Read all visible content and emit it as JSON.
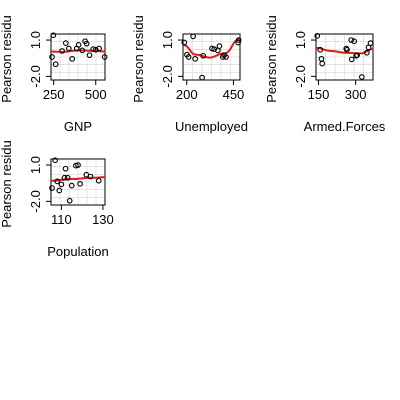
{
  "colors": {
    "background": "#ffffff",
    "points": "#000000",
    "grid": "#d3d3d3",
    "smooth_line": "#e41a1c"
  },
  "chart_data": [
    {
      "type": "scatter",
      "xlabel": "GNP",
      "ylabel": "Pearson residu",
      "xlim": [
        234,
        555
      ],
      "ylim": [
        -2.3,
        1.5
      ],
      "xticks": [
        250,
        500
      ],
      "xtick_labels": [
        "250",
        "500"
      ],
      "yticks": [
        -2.0,
        1.0
      ],
      "ytick_labels": [
        "-2.0",
        "1.0"
      ],
      "grid": true,
      "points": [
        [
          240,
          -0.4
        ],
        [
          248,
          1.4
        ],
        [
          262,
          -1.0
        ],
        [
          300,
          0.1
        ],
        [
          322,
          0.75
        ],
        [
          340,
          0.3
        ],
        [
          360,
          -0.55
        ],
        [
          387,
          0.3
        ],
        [
          398,
          0.6
        ],
        [
          420,
          0.15
        ],
        [
          437,
          0.9
        ],
        [
          446,
          0.7
        ],
        [
          463,
          -0.25
        ],
        [
          485,
          0.25
        ],
        [
          500,
          0.2
        ],
        [
          520,
          0.3
        ],
        [
          553,
          -0.4
        ]
      ],
      "smooth": {
        "x": [
          234,
          300,
          400,
          500,
          555
        ],
        "y": [
          0.05,
          0.02,
          0.15,
          0.1,
          0.05
        ]
      }
    },
    {
      "type": "scatter",
      "xlabel": "Unemployed",
      "ylabel": "Pearson residu",
      "xlim": [
        180,
        485
      ],
      "ylim": [
        -2.3,
        1.5
      ],
      "xticks": [
        200,
        450
      ],
      "xtick_labels": [
        "200",
        "450"
      ],
      "yticks": [
        -2.0,
        1.0
      ],
      "ytick_labels": [
        "-2.0",
        "1.0"
      ],
      "grid": true,
      "points": [
        [
          187,
          0.8
        ],
        [
          201,
          -0.2
        ],
        [
          210,
          -0.4
        ],
        [
          234,
          1.3
        ],
        [
          245,
          -0.55
        ],
        [
          282,
          -2.1
        ],
        [
          288,
          -0.3
        ],
        [
          335,
          0.3
        ],
        [
          347,
          0.25
        ],
        [
          366,
          0.15
        ],
        [
          375,
          0.5
        ],
        [
          393,
          -0.4
        ],
        [
          400,
          -0.25
        ],
        [
          410,
          -0.4
        ],
        [
          475,
          0.8
        ],
        [
          478,
          1.0
        ]
      ],
      "smooth": {
        "x": [
          180,
          250,
          320,
          400,
          485
        ],
        "y": [
          0.6,
          -0.2,
          -0.45,
          -0.1,
          1.1
        ]
      }
    },
    {
      "type": "scatter",
      "xlabel": "Armed.Forces",
      "ylabel": "Pearson residu",
      "xlim": [
        140,
        370
      ],
      "ylim": [
        -2.3,
        1.5
      ],
      "xticks": [
        150,
        300
      ],
      "xtick_labels": [
        "150",
        "300"
      ],
      "yticks": [
        -2.0,
        1.0
      ],
      "ytick_labels": [
        "-2.0",
        "1.0"
      ],
      "grid": true,
      "points": [
        [
          145,
          1.35
        ],
        [
          157,
          0.2
        ],
        [
          162,
          -0.55
        ],
        [
          165,
          -0.95
        ],
        [
          262,
          0.3
        ],
        [
          265,
          0.2
        ],
        [
          282,
          1.0
        ],
        [
          284,
          -0.6
        ],
        [
          294,
          0.9
        ],
        [
          302,
          -0.3
        ],
        [
          306,
          -0.25
        ],
        [
          325,
          -2.05
        ],
        [
          345,
          -0.05
        ],
        [
          352,
          0.4
        ],
        [
          360,
          0.75
        ]
      ],
      "smooth": {
        "x": [
          140,
          200,
          260,
          320,
          370
        ],
        "y": [
          0.35,
          0.1,
          -0.05,
          -0.1,
          0.25
        ]
      }
    },
    {
      "type": "scatter",
      "xlabel": "Population",
      "ylabel": "Pearson residu",
      "xlim": [
        105,
        131
      ],
      "ylim": [
        -2.3,
        1.5
      ],
      "xticks": [
        110,
        130
      ],
      "xtick_labels": [
        "110",
        "130"
      ],
      "yticks": [
        -2.0,
        1.0
      ],
      "ytick_labels": [
        "-2.0",
        "1.0"
      ],
      "grid": true,
      "points": [
        [
          105.5,
          -0.9
        ],
        [
          107,
          1.4
        ],
        [
          108,
          -0.35
        ],
        [
          109,
          -1.1
        ],
        [
          110,
          -0.6
        ],
        [
          111.5,
          -0.05
        ],
        [
          112,
          0.7
        ],
        [
          113,
          -0.05
        ],
        [
          114,
          -1.95
        ],
        [
          115,
          -0.7
        ],
        [
          117,
          0.95
        ],
        [
          118,
          1.0
        ],
        [
          119,
          -0.55
        ],
        [
          122,
          0.2
        ],
        [
          124,
          0.05
        ],
        [
          128,
          -0.3
        ]
      ],
      "smooth": {
        "x": [
          105,
          115,
          125,
          131
        ],
        "y": [
          -0.3,
          -0.15,
          -0.05,
          0.0
        ]
      }
    }
  ]
}
